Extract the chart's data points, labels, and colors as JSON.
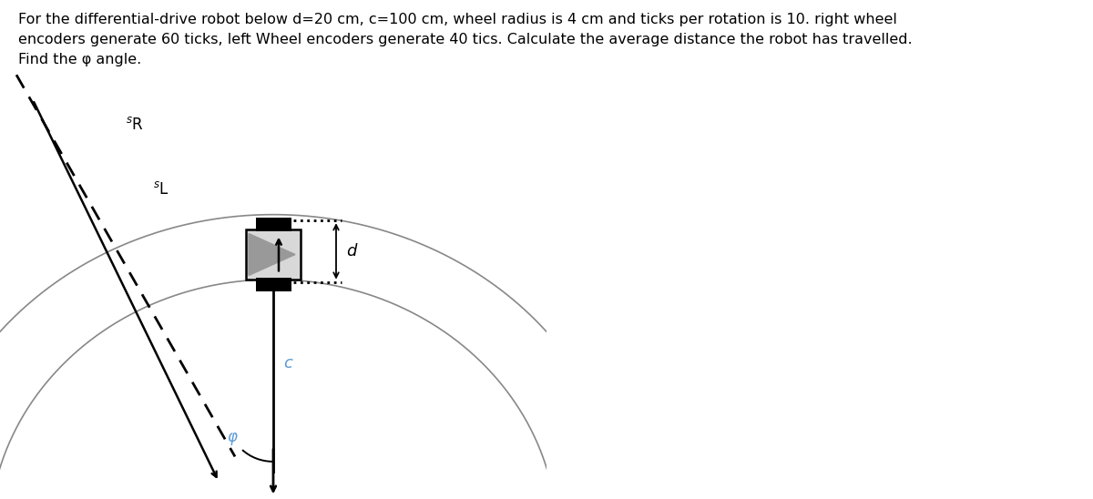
{
  "title_text": "For the differential-drive robot below d=20 cm, c=100 cm, wheel radius is 4 cm and ticks per rotation is 10. right wheel\nencoders generate 60 ticks, left Wheel encoders generate 40 tics. Calculate the average distance the robot has travelled.\nFind the φ angle.",
  "title_fontsize": 11.5,
  "fig_bg": "#ffffff",
  "arc_color": "#888888",
  "robot_fill": "#d8d8d8",
  "robot_border": "#000000",
  "wheel_color": "#000000",
  "label_c_color": "#5b9bd5",
  "label_phi_color": "#5b9bd5",
  "line_color": "#000000",
  "dash_color": "#000000"
}
